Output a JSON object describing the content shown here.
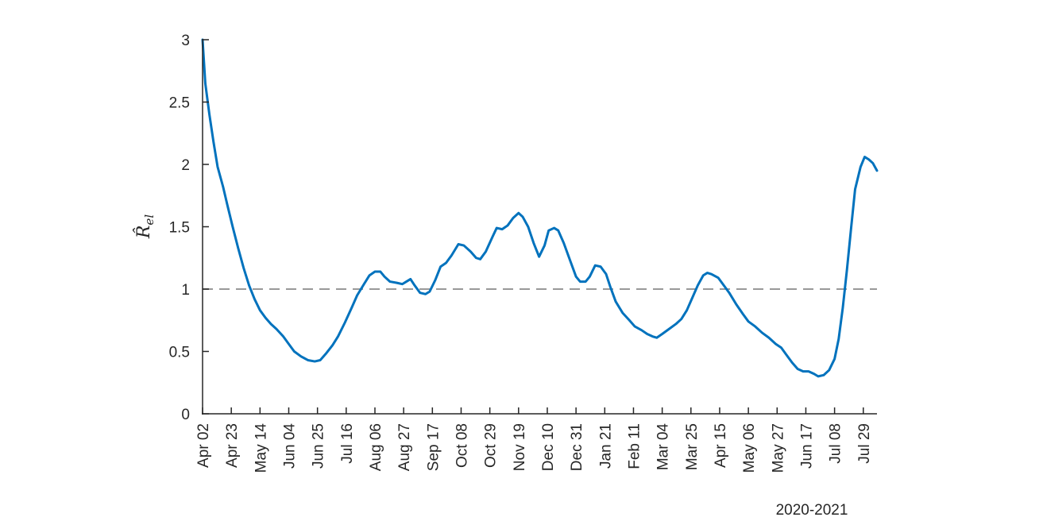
{
  "chart_data": {
    "type": "line",
    "title": "",
    "xlabel_note": "2020-2021",
    "ylabel": "R̂_el",
    "ylim": [
      0,
      3
    ],
    "y_ticks": [
      0,
      0.5,
      1,
      1.5,
      2,
      2.5,
      3
    ],
    "y_tick_labels": [
      "0",
      "0.5",
      "1",
      "1.5",
      "2",
      "2.5",
      "3"
    ],
    "x_ticks": [
      "Apr 02",
      "Apr 23",
      "May 14",
      "Jun 04",
      "Jun 25",
      "Jul 16",
      "Aug 06",
      "Aug 27",
      "Sep 17",
      "Oct 08",
      "Oct 29",
      "Nov 19",
      "Dec 10",
      "Dec 31",
      "Jan 21",
      "Feb 11",
      "Mar 04",
      "Mar 25",
      "Apr 15",
      "May 06",
      "May 27",
      "Jun 17",
      "Jul 08",
      "Jul 29"
    ],
    "x_start": "2020-04-02",
    "x_end": "2021-08-08",
    "reference_line": {
      "y": 1,
      "style": "dashed",
      "color": "#999999"
    },
    "series": [
      {
        "color": "#0072BD",
        "points": [
          [
            "2020-04-02",
            3.0
          ],
          [
            "2020-04-04",
            2.65
          ],
          [
            "2020-04-07",
            2.4
          ],
          [
            "2020-04-10",
            2.18
          ],
          [
            "2020-04-13",
            1.98
          ],
          [
            "2020-04-17",
            1.82
          ],
          [
            "2020-04-20",
            1.68
          ],
          [
            "2020-04-24",
            1.5
          ],
          [
            "2020-04-28",
            1.33
          ],
          [
            "2020-05-02",
            1.17
          ],
          [
            "2020-05-06",
            1.03
          ],
          [
            "2020-05-10",
            0.92
          ],
          [
            "2020-05-14",
            0.83
          ],
          [
            "2020-05-18",
            0.77
          ],
          [
            "2020-05-22",
            0.72
          ],
          [
            "2020-05-26",
            0.68
          ],
          [
            "2020-05-31",
            0.62
          ],
          [
            "2020-06-04",
            0.56
          ],
          [
            "2020-06-08",
            0.5
          ],
          [
            "2020-06-13",
            0.46
          ],
          [
            "2020-06-18",
            0.43
          ],
          [
            "2020-06-23",
            0.42
          ],
          [
            "2020-06-27",
            0.43
          ],
          [
            "2020-07-01",
            0.48
          ],
          [
            "2020-07-06",
            0.55
          ],
          [
            "2020-07-10",
            0.62
          ],
          [
            "2020-07-15",
            0.73
          ],
          [
            "2020-07-20",
            0.85
          ],
          [
            "2020-07-24",
            0.95
          ],
          [
            "2020-07-29",
            1.04
          ],
          [
            "2020-08-02",
            1.11
          ],
          [
            "2020-08-06",
            1.14
          ],
          [
            "2020-08-10",
            1.14
          ],
          [
            "2020-08-13",
            1.1
          ],
          [
            "2020-08-17",
            1.06
          ],
          [
            "2020-08-22",
            1.05
          ],
          [
            "2020-08-26",
            1.04
          ],
          [
            "2020-08-29",
            1.06
          ],
          [
            "2020-09-01",
            1.08
          ],
          [
            "2020-09-04",
            1.03
          ],
          [
            "2020-09-08",
            0.97
          ],
          [
            "2020-09-12",
            0.96
          ],
          [
            "2020-09-15",
            0.98
          ],
          [
            "2020-09-19",
            1.07
          ],
          [
            "2020-09-23",
            1.18
          ],
          [
            "2020-09-27",
            1.21
          ],
          [
            "2020-10-01",
            1.27
          ],
          [
            "2020-10-06",
            1.36
          ],
          [
            "2020-10-10",
            1.35
          ],
          [
            "2020-10-15",
            1.3
          ],
          [
            "2020-10-19",
            1.25
          ],
          [
            "2020-10-22",
            1.24
          ],
          [
            "2020-10-26",
            1.3
          ],
          [
            "2020-10-31",
            1.42
          ],
          [
            "2020-11-03",
            1.49
          ],
          [
            "2020-11-07",
            1.48
          ],
          [
            "2020-11-11",
            1.51
          ],
          [
            "2020-11-15",
            1.57
          ],
          [
            "2020-11-19",
            1.61
          ],
          [
            "2020-11-22",
            1.58
          ],
          [
            "2020-11-26",
            1.5
          ],
          [
            "2020-11-30",
            1.37
          ],
          [
            "2020-12-04",
            1.26
          ],
          [
            "2020-12-08",
            1.35
          ],
          [
            "2020-12-11",
            1.47
          ],
          [
            "2020-12-15",
            1.49
          ],
          [
            "2020-12-18",
            1.47
          ],
          [
            "2020-12-22",
            1.37
          ],
          [
            "2020-12-27",
            1.22
          ],
          [
            "2020-12-31",
            1.1
          ],
          [
            "2021-01-03",
            1.06
          ],
          [
            "2021-01-07",
            1.06
          ],
          [
            "2021-01-10",
            1.1
          ],
          [
            "2021-01-14",
            1.19
          ],
          [
            "2021-01-18",
            1.18
          ],
          [
            "2021-01-22",
            1.12
          ],
          [
            "2021-01-25",
            1.02
          ],
          [
            "2021-01-29",
            0.9
          ],
          [
            "2021-02-03",
            0.81
          ],
          [
            "2021-02-08",
            0.75
          ],
          [
            "2021-02-12",
            0.7
          ],
          [
            "2021-02-17",
            0.67
          ],
          [
            "2021-02-21",
            0.64
          ],
          [
            "2021-02-25",
            0.62
          ],
          [
            "2021-02-28",
            0.61
          ],
          [
            "2021-03-04",
            0.64
          ],
          [
            "2021-03-09",
            0.68
          ],
          [
            "2021-03-14",
            0.72
          ],
          [
            "2021-03-18",
            0.76
          ],
          [
            "2021-03-22",
            0.83
          ],
          [
            "2021-03-26",
            0.93
          ],
          [
            "2021-03-30",
            1.03
          ],
          [
            "2021-04-03",
            1.11
          ],
          [
            "2021-04-06",
            1.13
          ],
          [
            "2021-04-09",
            1.12
          ],
          [
            "2021-04-14",
            1.09
          ],
          [
            "2021-04-18",
            1.03
          ],
          [
            "2021-04-22",
            0.97
          ],
          [
            "2021-04-27",
            0.88
          ],
          [
            "2021-05-02",
            0.8
          ],
          [
            "2021-05-06",
            0.74
          ],
          [
            "2021-05-11",
            0.7
          ],
          [
            "2021-05-16",
            0.65
          ],
          [
            "2021-05-21",
            0.61
          ],
          [
            "2021-05-26",
            0.56
          ],
          [
            "2021-05-30",
            0.53
          ],
          [
            "2021-06-03",
            0.47
          ],
          [
            "2021-06-07",
            0.41
          ],
          [
            "2021-06-11",
            0.36
          ],
          [
            "2021-06-15",
            0.34
          ],
          [
            "2021-06-19",
            0.34
          ],
          [
            "2021-06-23",
            0.32
          ],
          [
            "2021-06-26",
            0.3
          ],
          [
            "2021-06-30",
            0.31
          ],
          [
            "2021-07-04",
            0.35
          ],
          [
            "2021-07-08",
            0.44
          ],
          [
            "2021-07-11",
            0.6
          ],
          [
            "2021-07-14",
            0.85
          ],
          [
            "2021-07-17",
            1.15
          ],
          [
            "2021-07-20",
            1.48
          ],
          [
            "2021-07-23",
            1.8
          ],
          [
            "2021-07-27",
            1.98
          ],
          [
            "2021-07-30",
            2.06
          ],
          [
            "2021-08-02",
            2.04
          ],
          [
            "2021-08-05",
            2.01
          ],
          [
            "2021-08-08",
            1.95
          ]
        ]
      }
    ]
  }
}
